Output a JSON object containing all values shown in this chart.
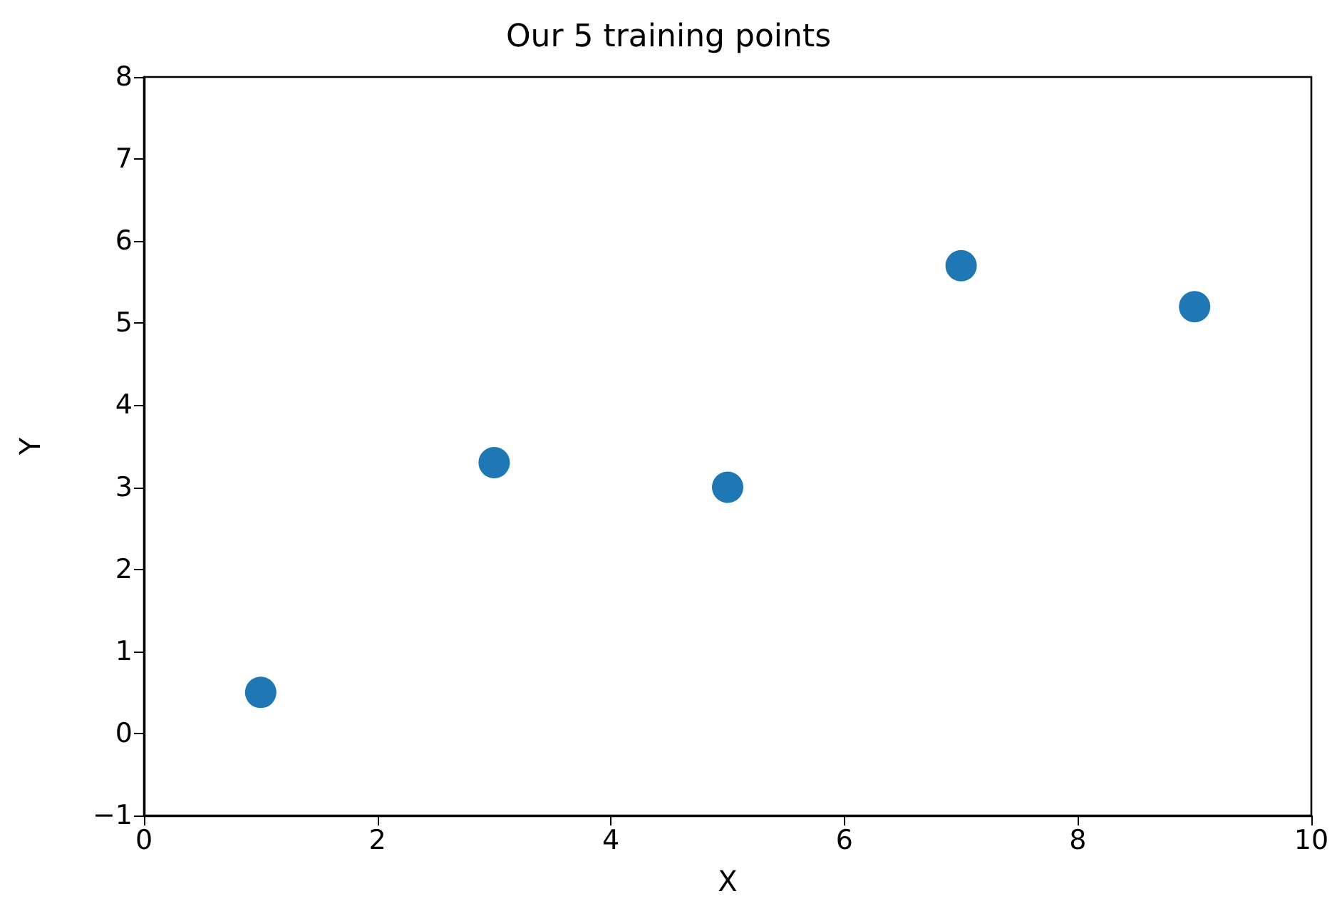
{
  "chart_data": {
    "type": "scatter",
    "title": "Our 5 training points",
    "xlabel": "X",
    "ylabel": "Y",
    "x": [
      1,
      3,
      5,
      7,
      9
    ],
    "series": [
      {
        "color": "#1f77b4",
        "values": [
          0.5,
          3.3,
          3.0,
          5.7,
          5.2
        ]
      }
    ],
    "xlim": [
      0,
      10
    ],
    "xticks": [
      0,
      2,
      4,
      6,
      8,
      10
    ],
    "ylim": [
      -1,
      8
    ],
    "yticks": [
      {
        "value": -1,
        "label": "−1"
      },
      0,
      1,
      2,
      3,
      4,
      5,
      6,
      7,
      8
    ],
    "grid": false,
    "marker": "circle"
  }
}
